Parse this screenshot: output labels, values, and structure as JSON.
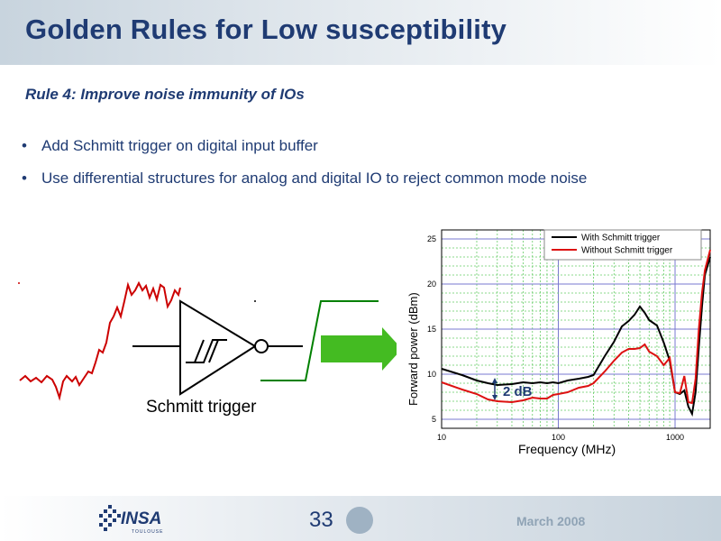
{
  "slide": {
    "title": "Golden Rules for Low susceptibility",
    "rule": "Rule 4: Improve noise immunity of IOs",
    "bullets": [
      "Add Schmitt trigger on digital input buffer",
      "Use differential structures for analog and digital IO to reject common mode noise"
    ],
    "bullet_symbol": "•",
    "schmitt_label": "Schmitt trigger",
    "page_number": "33",
    "date": "March 2008",
    "logo_text": "INSA",
    "logo_sub": "TOULOUSE"
  },
  "colors": {
    "title": "#1f3b73",
    "noisy_signal": "#cc0000",
    "clean_signal": "#008000",
    "arrow": "#44bb22",
    "series_with": "#000000",
    "series_without": "#dd1111"
  },
  "chart_data": {
    "type": "line",
    "xlabel": "Frequency (MHz)",
    "ylabel": "Forward power (dBm)",
    "xscale": "log",
    "xlim": [
      10,
      2000
    ],
    "ylim": [
      4,
      26
    ],
    "xticks": [
      10,
      100,
      1000
    ],
    "xtick_labels": [
      "10",
      "100",
      "1000"
    ],
    "yticks": [
      5,
      10,
      15,
      20,
      25
    ],
    "ytick_labels": [
      "5",
      "10",
      "15",
      "20",
      "25"
    ],
    "grid": true,
    "legend_position": "top-right",
    "annotation": "2 dB",
    "series": [
      {
        "name": "With Schmitt trigger",
        "color": "#000000",
        "x": [
          10,
          15,
          20,
          25,
          30,
          40,
          50,
          60,
          70,
          80,
          90,
          100,
          120,
          150,
          180,
          200,
          250,
          300,
          350,
          400,
          450,
          500,
          550,
          600,
          700,
          800,
          900,
          1000,
          1100,
          1200,
          1300,
          1400,
          1500,
          1600,
          1700,
          1800,
          2000
        ],
        "y": [
          10.6,
          9.9,
          9.3,
          9.0,
          8.8,
          8.9,
          9.1,
          9.0,
          9.1,
          9.0,
          9.1,
          9.0,
          9.3,
          9.5,
          9.7,
          9.9,
          12.0,
          13.6,
          15.3,
          15.9,
          16.6,
          17.5,
          16.8,
          16.0,
          15.4,
          13.5,
          11.5,
          8.0,
          7.8,
          8.2,
          6.4,
          5.6,
          8.0,
          13.0,
          17.5,
          21.0,
          23.0
        ]
      },
      {
        "name": "Without Schmitt trigger",
        "color": "#dd1111",
        "x": [
          10,
          15,
          20,
          25,
          30,
          40,
          50,
          60,
          70,
          80,
          90,
          100,
          120,
          150,
          180,
          200,
          250,
          300,
          350,
          400,
          450,
          500,
          550,
          600,
          700,
          800,
          900,
          1000,
          1100,
          1200,
          1300,
          1400,
          1500,
          1600,
          1700,
          1800,
          2000
        ],
        "y": [
          9.1,
          8.3,
          7.8,
          7.2,
          7.0,
          6.9,
          7.1,
          7.4,
          7.3,
          7.3,
          7.7,
          7.8,
          8.0,
          8.5,
          8.7,
          9.0,
          10.3,
          11.5,
          12.4,
          12.8,
          12.8,
          12.9,
          13.3,
          12.5,
          12.0,
          11.0,
          11.8,
          8.0,
          7.9,
          9.8,
          6.9,
          6.8,
          9.5,
          15.0,
          19.0,
          21.5,
          23.8
        ]
      }
    ]
  }
}
